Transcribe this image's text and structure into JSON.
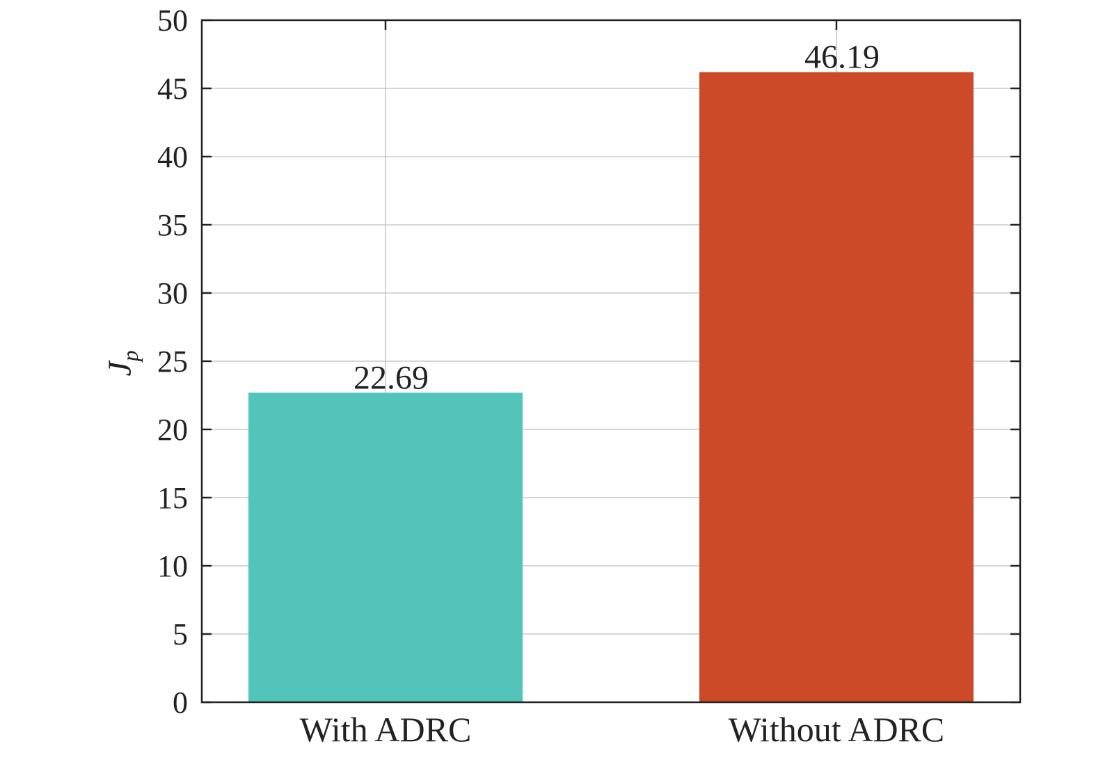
{
  "chart_data": {
    "type": "bar",
    "categories": [
      "With ADRC",
      "Without ADRC"
    ],
    "values": [
      22.69,
      46.19
    ],
    "value_labels": [
      "22.69",
      "46.19"
    ],
    "colors": [
      "#52c4b9",
      "#cc4a28"
    ],
    "title": "",
    "xlabel": "",
    "ylabel": "J",
    "ylabel_subscript": "p",
    "ylim": [
      0,
      50
    ],
    "yticks": [
      0,
      5,
      10,
      15,
      20,
      25,
      30,
      35,
      40,
      45,
      50
    ],
    "ytick_labels": [
      "0",
      "5",
      "10",
      "15",
      "20",
      "25",
      "30",
      "35",
      "40",
      "45",
      "50"
    ],
    "grid": true,
    "legend": false
  }
}
